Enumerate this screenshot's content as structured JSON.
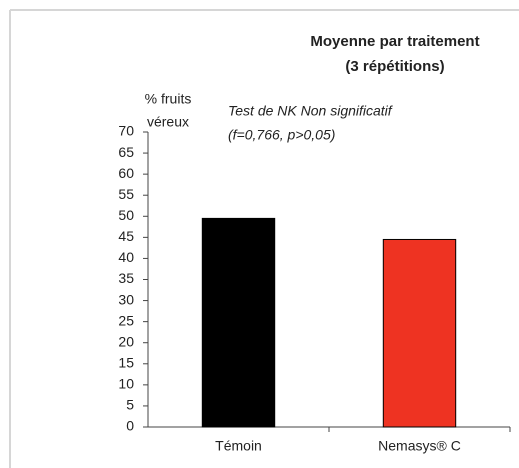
{
  "chart_data": {
    "type": "bar",
    "title": "Moyenne par traitement",
    "subtitle": "(3 répétitions)",
    "ylabel": [
      "% fruits",
      "véreux"
    ],
    "annotations": [
      "Test de NK Non significatif",
      "(f=0,766, p>0,05)"
    ],
    "categories": [
      "Témoin",
      "Nemasys® C"
    ],
    "values": [
      49.5,
      44.5
    ],
    "colors": [
      "#000000",
      "#ee3322"
    ],
    "ylim": [
      0,
      70
    ],
    "yticks": [
      0,
      5,
      10,
      15,
      20,
      25,
      30,
      35,
      40,
      45,
      50,
      55,
      60,
      65,
      70
    ],
    "grid": false
  }
}
